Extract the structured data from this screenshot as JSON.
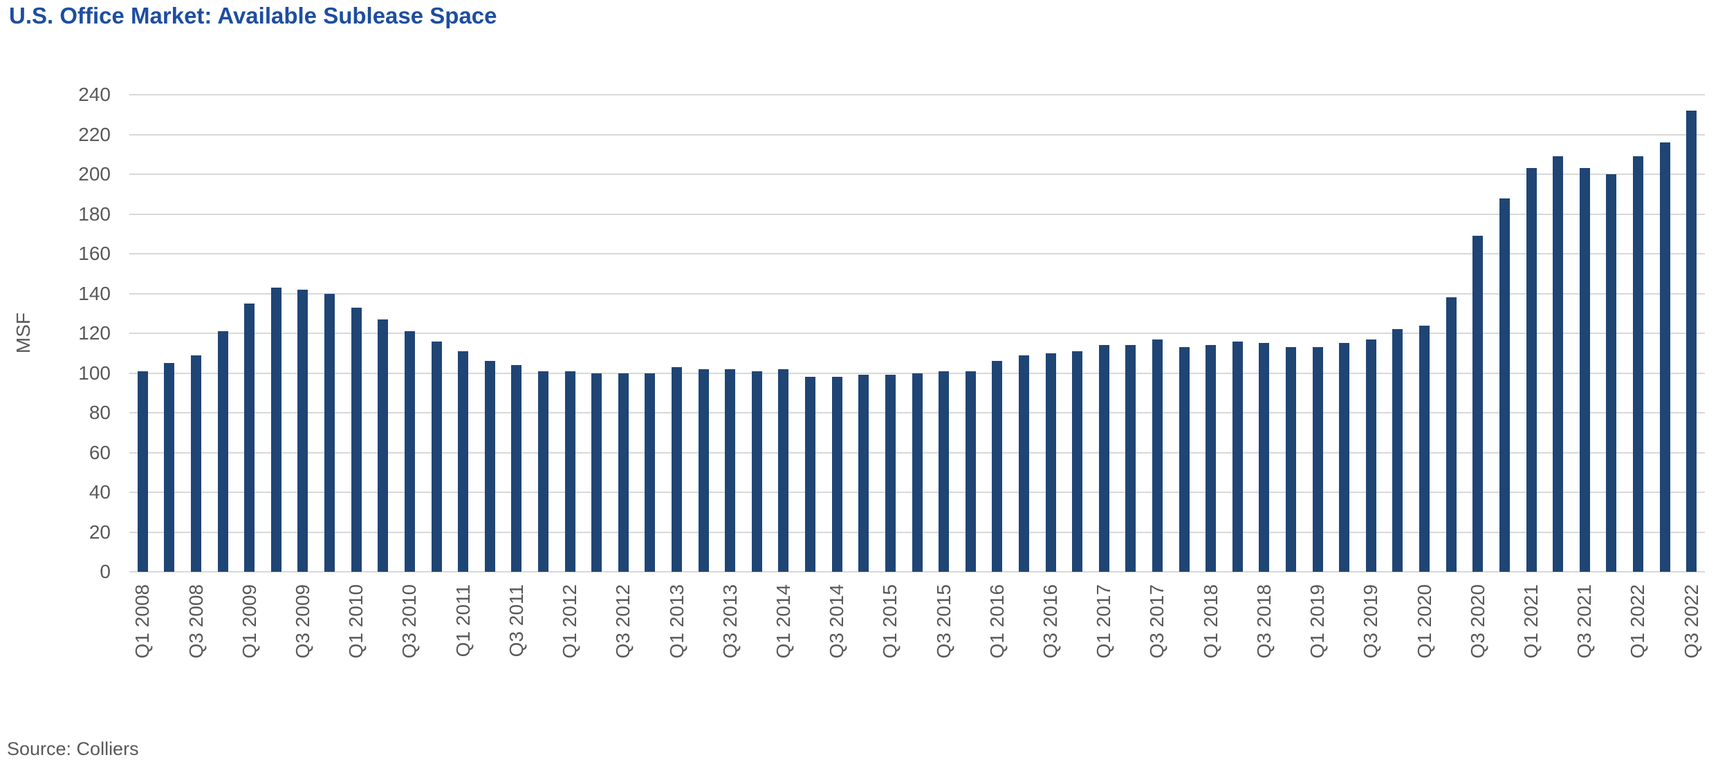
{
  "page": {
    "title": "U.S. Office Market: Available Sublease Space",
    "source_note": "Source: Colliers"
  },
  "colors": {
    "title": "#1D4E9F",
    "bar": "#1F4575",
    "grid": "#D8D8D8",
    "axis_text": "#595959"
  },
  "chart_data": {
    "type": "bar",
    "title": "U.S. Office Market: Available Sublease Space",
    "xlabel": "",
    "ylabel": "MSF",
    "ylim": [
      0,
      240
    ],
    "yticks": [
      0,
      20,
      40,
      60,
      80,
      100,
      120,
      140,
      160,
      180,
      200,
      220,
      240
    ],
    "grid": true,
    "legend": false,
    "source": "Source: Colliers",
    "x_tick_labels_visible": [
      "Q1 2008",
      "Q3 2008",
      "Q1 2009",
      "Q3 2009",
      "Q1 2010",
      "Q3 2010",
      "Q1 2011",
      "Q3 2011",
      "Q1 2012",
      "Q3 2012",
      "Q1 2013",
      "Q3 2013",
      "Q1 2014",
      "Q3 2014",
      "Q1 2015",
      "Q3 2015",
      "Q1 2016",
      "Q3 2016",
      "Q1 2017",
      "Q3 2017",
      "Q1 2018",
      "Q3 2018",
      "Q1 2019",
      "Q3 2019",
      "Q1 2020",
      "Q3 2020",
      "Q1 2021",
      "Q3 2021",
      "Q1 2022",
      "Q3 2022"
    ],
    "categories": [
      "Q1 2008",
      "Q2 2008",
      "Q3 2008",
      "Q4 2008",
      "Q1 2009",
      "Q2 2009",
      "Q3 2009",
      "Q4 2009",
      "Q1 2010",
      "Q2 2010",
      "Q3 2010",
      "Q4 2010",
      "Q1 2011",
      "Q2 2011",
      "Q3 2011",
      "Q4 2011",
      "Q1 2012",
      "Q2 2012",
      "Q3 2012",
      "Q4 2012",
      "Q1 2013",
      "Q2 2013",
      "Q3 2013",
      "Q4 2013",
      "Q1 2014",
      "Q2 2014",
      "Q3 2014",
      "Q4 2014",
      "Q1 2015",
      "Q2 2015",
      "Q3 2015",
      "Q4 2015",
      "Q1 2016",
      "Q2 2016",
      "Q3 2016",
      "Q4 2016",
      "Q1 2017",
      "Q2 2017",
      "Q3 2017",
      "Q4 2017",
      "Q1 2018",
      "Q2 2018",
      "Q3 2018",
      "Q4 2018",
      "Q1 2019",
      "Q2 2019",
      "Q3 2019",
      "Q4 2019",
      "Q1 2020",
      "Q2 2020",
      "Q3 2020",
      "Q4 2020",
      "Q1 2021",
      "Q2 2021",
      "Q3 2021",
      "Q4 2021",
      "Q1 2022",
      "Q2 2022",
      "Q3 2022"
    ],
    "values": [
      101,
      105,
      109,
      121,
      135,
      143,
      142,
      140,
      133,
      127,
      121,
      116,
      111,
      106,
      104,
      101,
      101,
      100,
      100,
      100,
      103,
      102,
      102,
      101,
      102,
      98,
      98,
      99,
      99,
      100,
      101,
      101,
      106,
      109,
      110,
      111,
      114,
      114,
      117,
      113,
      114,
      116,
      115,
      113,
      113,
      115,
      117,
      122,
      124,
      138,
      169,
      188,
      203,
      209,
      203,
      200,
      209,
      216,
      232
    ]
  }
}
